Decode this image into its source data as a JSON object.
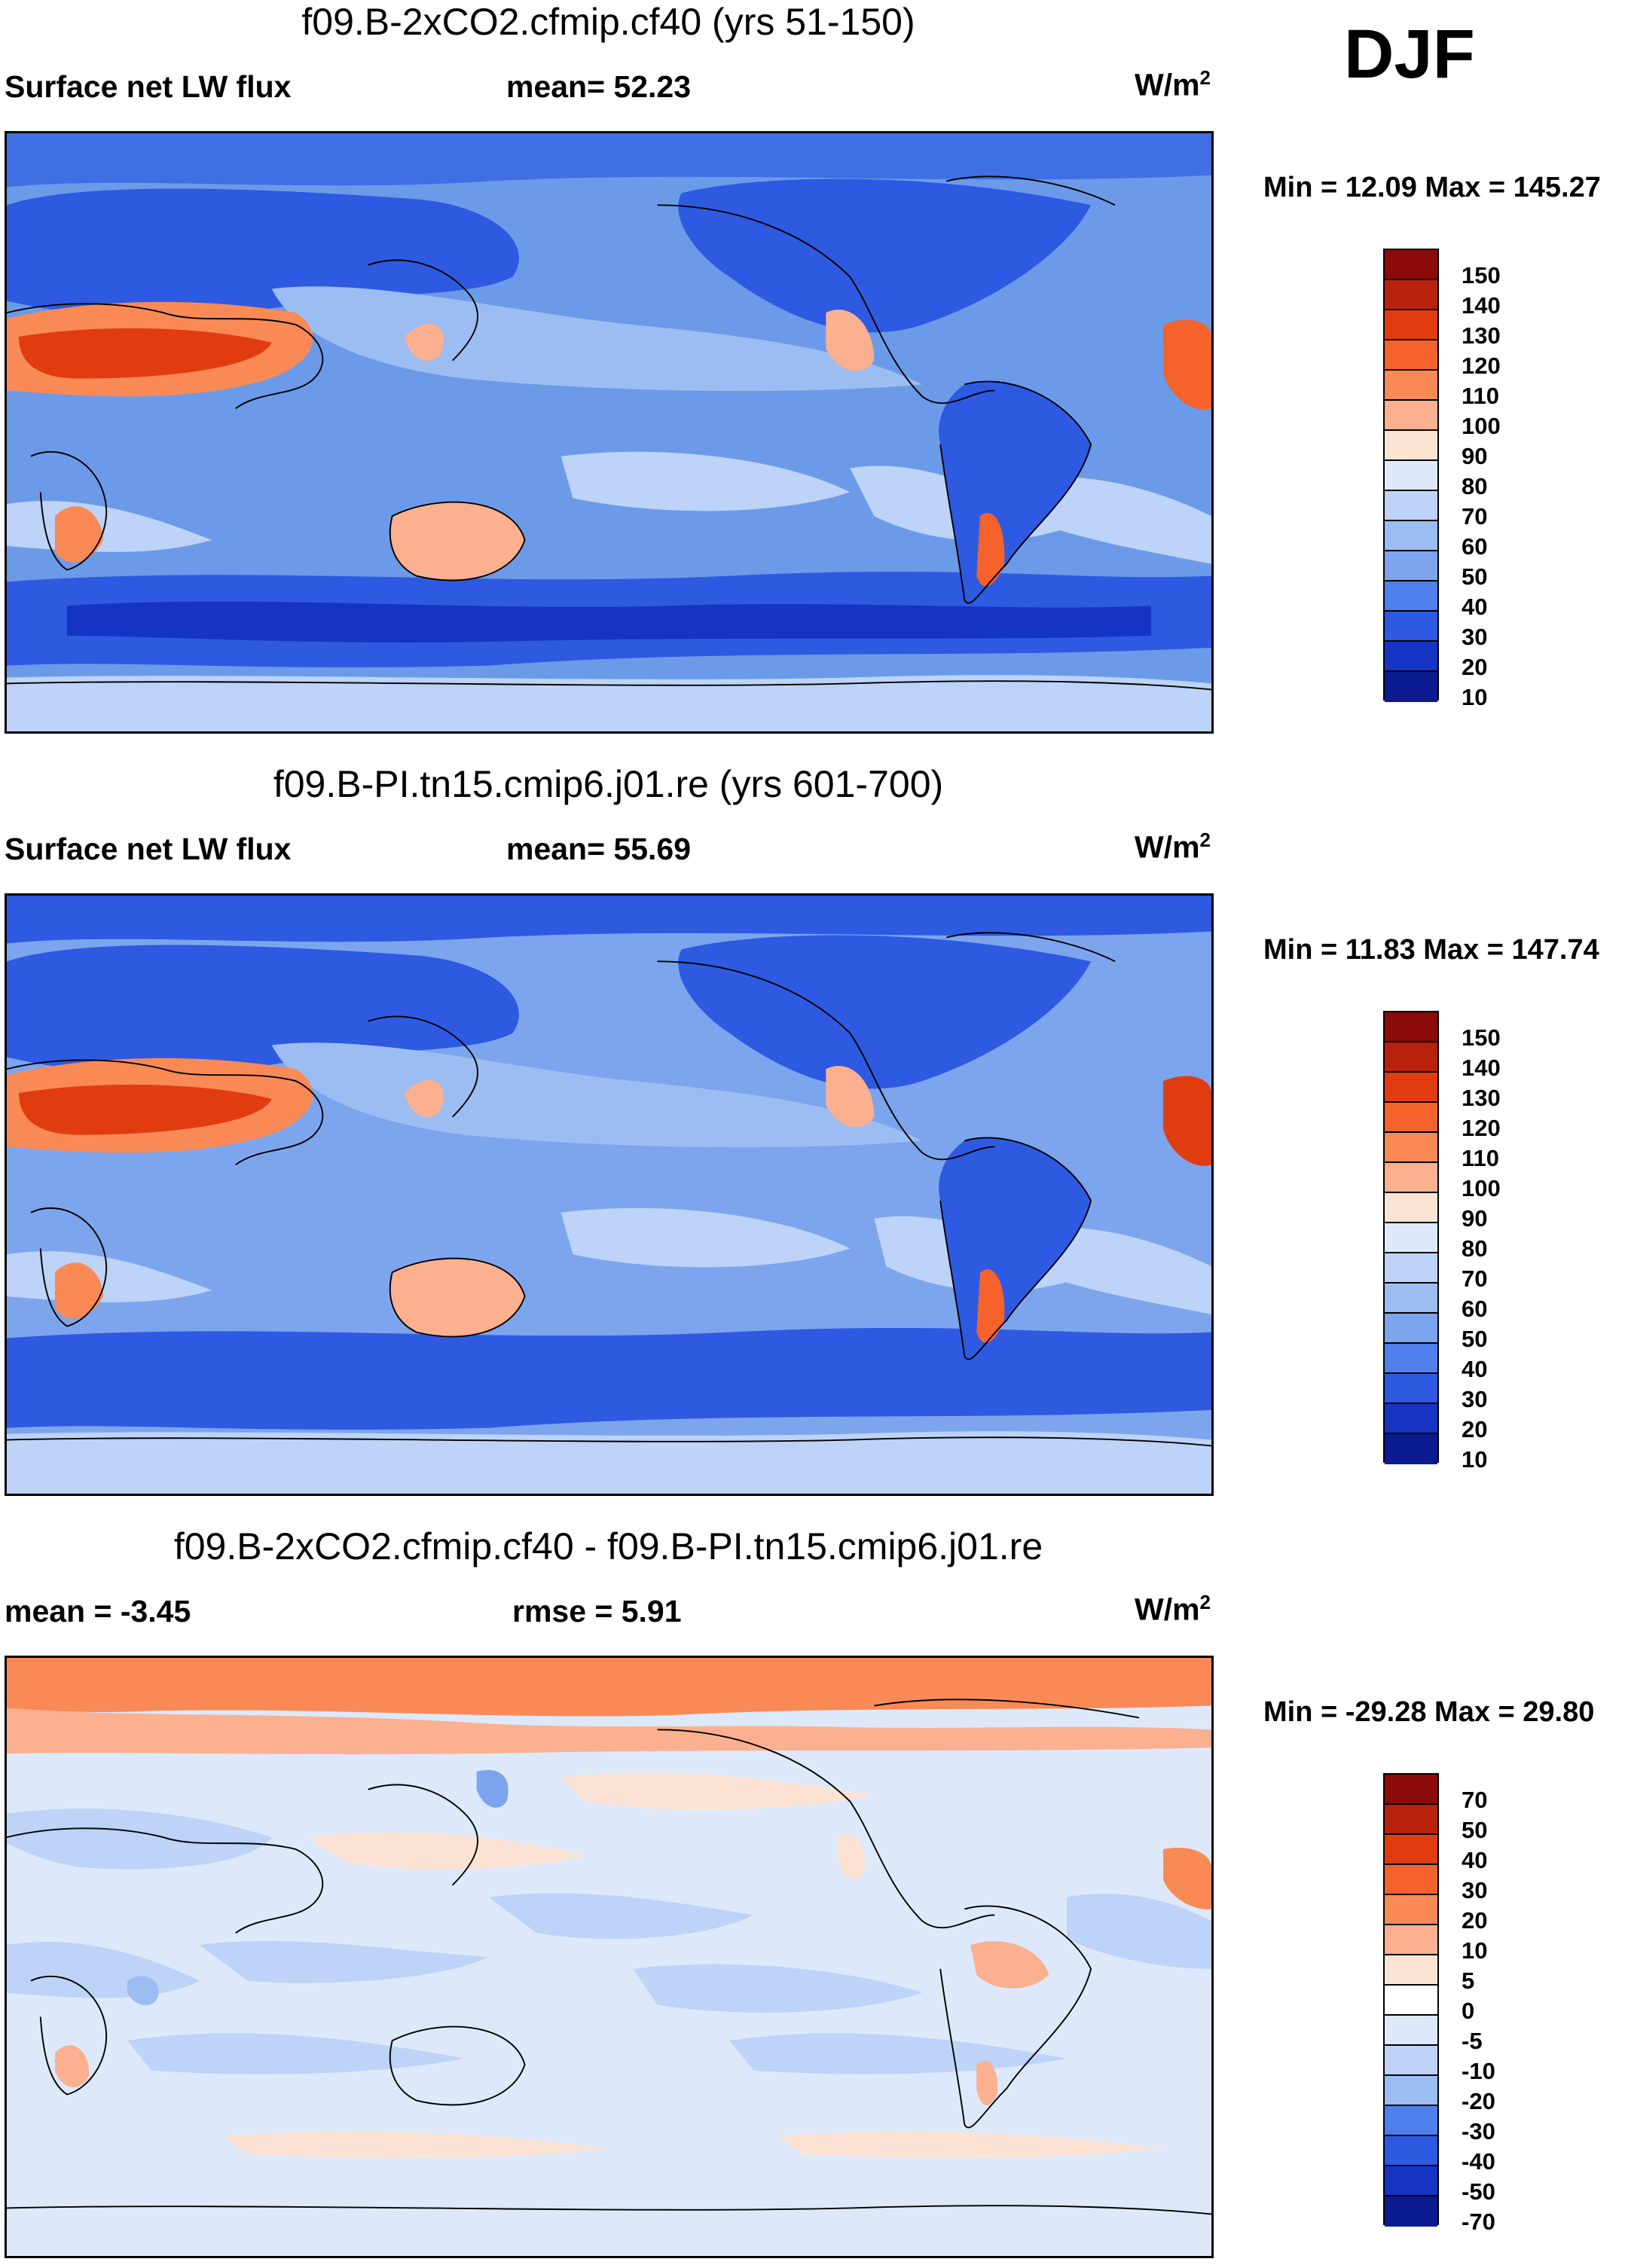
{
  "season": "DJF",
  "units_base": "W/m",
  "units_exp": "2",
  "panels": [
    {
      "title": "f09.B-2xCO2.cfmip.cf40 (yrs 51-150)",
      "left_label": "Surface net LW flux",
      "mid_label": "mean=  52.23",
      "minmax": "Min =  12.09 Max = 145.27",
      "colorbar_labels": [
        "150",
        "140",
        "130",
        "120",
        "110",
        "100",
        "90",
        "80",
        "70",
        "60",
        "50",
        "40",
        "30",
        "20",
        "10"
      ],
      "colorbar_colors": [
        "#8b0a0a",
        "#b8210c",
        "#e13c0f",
        "#f5622b",
        "#f98a55",
        "#fbb090",
        "#fde3d3",
        "#dde9fb",
        "#bdd3f7",
        "#9cbdf2",
        "#7da5ee",
        "#4f7fea",
        "#2d5ae0",
        "#1634c4",
        "#0b1a8e"
      ],
      "background": "#6b9be8",
      "minmax_val": [
        12.09,
        145.27
      ]
    },
    {
      "title": "f09.B-PI.tn15.cmip6.j01.re (yrs 601-700)",
      "left_label": "Surface net LW flux",
      "mid_label": "mean=  55.69",
      "minmax": "Min =  11.83 Max = 147.74",
      "colorbar_labels": [
        "150",
        "140",
        "130",
        "120",
        "110",
        "100",
        "90",
        "80",
        "70",
        "60",
        "50",
        "40",
        "30",
        "20",
        "10"
      ],
      "colorbar_colors": [
        "#8b0a0a",
        "#b8210c",
        "#e13c0f",
        "#f5622b",
        "#f98a55",
        "#fbb090",
        "#fde3d3",
        "#dde9fb",
        "#bdd3f7",
        "#9cbdf2",
        "#7da5ee",
        "#4f7fea",
        "#2d5ae0",
        "#1634c4",
        "#0b1a8e"
      ],
      "background": "#6b9be8",
      "minmax_val": [
        11.83,
        147.74
      ]
    },
    {
      "title": "f09.B-2xCO2.cfmip.cf40 - f09.B-PI.tn15.cmip6.j01.re",
      "left_label": "mean =  -3.45",
      "mid_label": "rmse =    5.91",
      "minmax": "Min = -29.28 Max =  29.80",
      "colorbar_labels": [
        "70",
        "50",
        "40",
        "30",
        "20",
        "10",
        "5",
        "0",
        "-5",
        "-10",
        "-20",
        "-30",
        "-40",
        "-50",
        "-70"
      ],
      "colorbar_colors": [
        "#8b0a0a",
        "#b8210c",
        "#e13c0f",
        "#f5622b",
        "#f98a55",
        "#fbb090",
        "#fde3d3",
        "#ffffff",
        "#dde9fb",
        "#bdd3f7",
        "#9cbdf2",
        "#4f7fea",
        "#2d5ae0",
        "#1634c4",
        "#0b1a8e"
      ],
      "background": "#bcd2f5",
      "minmax_val": [
        -29.28,
        29.8
      ]
    }
  ]
}
